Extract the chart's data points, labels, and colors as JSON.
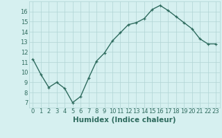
{
  "x": [
    0,
    1,
    2,
    3,
    4,
    5,
    6,
    7,
    8,
    9,
    10,
    11,
    12,
    13,
    14,
    15,
    16,
    17,
    18,
    19,
    20,
    21,
    22,
    23
  ],
  "y": [
    11.3,
    9.8,
    8.5,
    9.0,
    8.4,
    7.0,
    7.6,
    9.4,
    11.1,
    11.9,
    13.1,
    13.9,
    14.7,
    14.9,
    15.3,
    16.2,
    16.6,
    16.1,
    15.5,
    14.9,
    14.3,
    13.3,
    12.8,
    12.8
  ],
  "xlabel": "Humidex (Indice chaleur)",
  "xlim": [
    -0.5,
    23.5
  ],
  "ylim": [
    6.5,
    17.0
  ],
  "yticks": [
    7,
    8,
    9,
    10,
    11,
    12,
    13,
    14,
    15,
    16
  ],
  "xticks": [
    0,
    1,
    2,
    3,
    4,
    5,
    6,
    7,
    8,
    9,
    10,
    11,
    12,
    13,
    14,
    15,
    16,
    17,
    18,
    19,
    20,
    21,
    22,
    23
  ],
  "line_color": "#2e6b5e",
  "marker": "+",
  "bg_color": "#d6f0f0",
  "grid_color": "#b0d4d4",
  "xlabel_fontsize": 7.5,
  "tick_fontsize": 6.0,
  "linewidth": 1.0,
  "markersize": 3.5,
  "markeredgewidth": 0.9
}
